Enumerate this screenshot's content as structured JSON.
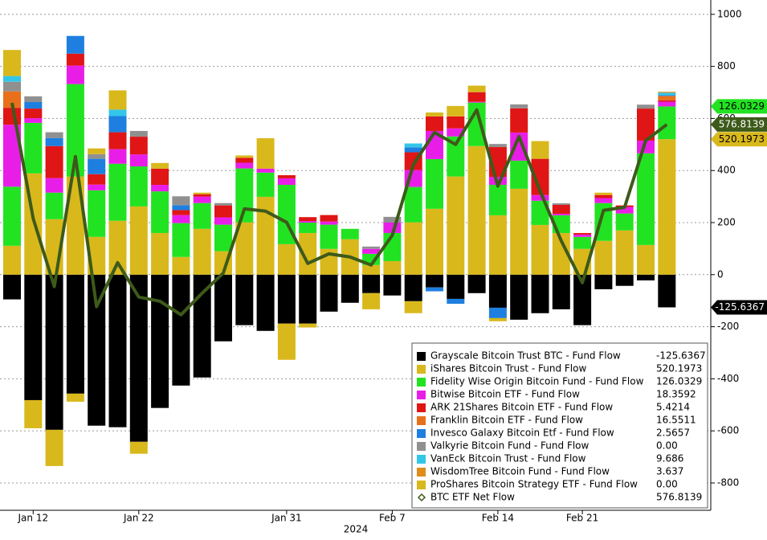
{
  "chart_data": {
    "type": "stacked_bar_line",
    "x_label": "2024",
    "categories": [
      null,
      "Jan 12",
      null,
      null,
      null,
      null,
      "Jan 22",
      null,
      null,
      null,
      null,
      null,
      null,
      "Jan 31",
      null,
      null,
      null,
      null,
      "Feb 7",
      null,
      null,
      null,
      null,
      "Feb 14",
      null,
      null,
      null,
      "Feb 21",
      null,
      null,
      null,
      null
    ],
    "ylim": [
      -905,
      1055
    ],
    "yticks": [
      -800,
      -600,
      -400,
      -200,
      0,
      200,
      400,
      600,
      800,
      1000
    ],
    "grid": true,
    "legend": "bottom-right",
    "series": [
      {
        "name": "Grayscale Bitcoin Trust BTC - Fund Flow",
        "color": "#000000",
        "latest": "-125.6367",
        "tag": true,
        "text_color": "#ffffff",
        "values": [
          -95,
          -482,
          -596,
          -457,
          -580,
          -586,
          -642,
          -512,
          -426,
          -395,
          -256,
          -194,
          -216,
          -188,
          -188,
          -142,
          -108,
          -71,
          -80,
          -102,
          -49,
          -93,
          -71,
          -127,
          -173,
          -148,
          -133,
          -194,
          -56,
          -43,
          -22,
          -125.6367
        ]
      },
      {
        "name": "iShares Bitcoin Trust - Fund Flow",
        "color": "#d9b81c",
        "latest": "520.1973",
        "tag": true,
        "text_color": "#000000",
        "values": [
          111,
          389,
          213,
          377,
          145,
          207,
          262,
          160,
          68,
          176,
          90,
          201,
          299,
          117,
          160,
          99,
          136,
          37,
          52,
          201,
          253,
          377,
          494,
          228,
          330,
          191,
          160,
          99,
          130,
          170,
          114,
          520.1973
        ]
      },
      {
        "name": "Fidelity Wise Origin Bitcoin Fund - Fund Flow",
        "color": "#22e322",
        "latest": "126.0329",
        "tag": true,
        "text_color": "#000000",
        "values": [
          227,
          194,
          102,
          355,
          179,
          219,
          154,
          160,
          130,
          99,
          102,
          207,
          93,
          228,
          40,
          93,
          40,
          43,
          108,
          136,
          191,
          154,
          167,
          117,
          108,
          93,
          68,
          46,
          145,
          65,
          352,
          126.0329
        ]
      },
      {
        "name": "Bitwise Bitcoin ETF - Fund Flow",
        "color": "#e81ee8",
        "latest": "18.3592",
        "tag": false,
        "values": [
          238,
          18,
          56,
          71,
          22,
          56,
          46,
          25,
          31,
          25,
          28,
          22,
          15,
          25,
          6,
          12,
          0,
          19,
          40,
          65,
          108,
          31,
          3,
          31,
          108,
          22,
          6,
          9,
          19,
          25,
          49,
          18.3592
        ]
      },
      {
        "name": "ARK 21Shares Bitcoin ETF - Fund Flow",
        "color": "#e01515",
        "latest": "5.4214",
        "tag": false,
        "values": [
          65,
          37,
          123,
          46,
          40,
          65,
          68,
          62,
          19,
          9,
          46,
          19,
          0,
          12,
          15,
          25,
          0,
          0,
          0,
          68,
          56,
          46,
          37,
          114,
          93,
          139,
          34,
          6,
          12,
          6,
          123,
          5.4214
        ]
      },
      {
        "name": "Franklin Bitcoin ETF - Fund Flow",
        "color": "#e8701a",
        "latest": "16.5511",
        "tag": false,
        "values": [
          63,
          0,
          0,
          0,
          0,
          0,
          0,
          0,
          0,
          0,
          0,
          0,
          0,
          0,
          0,
          0,
          0,
          0,
          0,
          0,
          0,
          0,
          0,
          0,
          0,
          0,
          0,
          0,
          0,
          0,
          0,
          16.5511
        ]
      },
      {
        "name": "Invesco Galaxy Bitcoin Etf - Fund Flow",
        "color": "#1e7fe0",
        "latest": "2.5657",
        "tag": false,
        "values": [
          0,
          25,
          31,
          68,
          59,
          62,
          0,
          0,
          19,
          0,
          0,
          0,
          0,
          0,
          0,
          0,
          0,
          0,
          0,
          19,
          -15,
          -19,
          0,
          -40,
          0,
          0,
          0,
          0,
          0,
          0,
          0,
          2.5657
        ]
      },
      {
        "name": "Valkyrie Bitcoin Fund - Fund Flow",
        "color": "#909090",
        "latest": "0.00",
        "tag": false,
        "values": [
          37,
          22,
          22,
          0,
          18,
          0,
          22,
          0,
          34,
          0,
          9,
          0,
          0,
          0,
          0,
          0,
          0,
          9,
          22,
          0,
          0,
          0,
          0,
          12,
          15,
          0,
          6,
          0,
          0,
          0,
          15,
          0
        ]
      },
      {
        "name": "VanEck Bitcoin Trust - Fund Flow",
        "color": "#33c6e8",
        "latest": "9.686",
        "tag": false,
        "values": [
          22,
          0,
          0,
          0,
          0,
          25,
          0,
          0,
          0,
          0,
          0,
          0,
          0,
          0,
          0,
          0,
          0,
          0,
          0,
          15,
          0,
          0,
          0,
          0,
          0,
          0,
          0,
          0,
          0,
          0,
          0,
          9.686
        ]
      },
      {
        "name": "WisdomTree Bitcoin Fund - Fund Flow",
        "color": "#e08c1a",
        "latest": "3.637",
        "tag": false,
        "values": [
          0,
          0,
          0,
          0,
          0,
          0,
          0,
          0,
          0,
          0,
          0,
          0,
          0,
          0,
          0,
          0,
          0,
          0,
          0,
          0,
          0,
          0,
          0,
          0,
          0,
          0,
          0,
          0,
          0,
          0,
          0,
          3.637
        ]
      },
      {
        "name": "ProShares Bitcoin Strategy ETF - Fund Flow",
        "color": "#d9b81c",
        "latest": "0.00",
        "tag": false,
        "values": [
          100,
          -108,
          -139,
          -31,
          22,
          74,
          -46,
          22,
          0,
          6,
          0,
          9,
          117,
          -139,
          -15,
          0,
          0,
          -62,
          0,
          -46,
          15,
          40,
          25,
          -12,
          0,
          68,
          0,
          0,
          9,
          0,
          0,
          0
        ]
      }
    ],
    "line": {
      "name": "BTC ETF Net Flow",
      "color": "#3d5a1a",
      "latest": "576.8139",
      "tag": true,
      "text_color": "#ffffff",
      "values": [
        660,
        216,
        -46,
        454,
        -123,
        46,
        -86,
        -102,
        -154,
        -71,
        6,
        253,
        244,
        201,
        43,
        80,
        68,
        37,
        151,
        423,
        546,
        500,
        633,
        340,
        531,
        321,
        130,
        -31,
        247,
        259,
        515,
        576.8139
      ]
    }
  }
}
